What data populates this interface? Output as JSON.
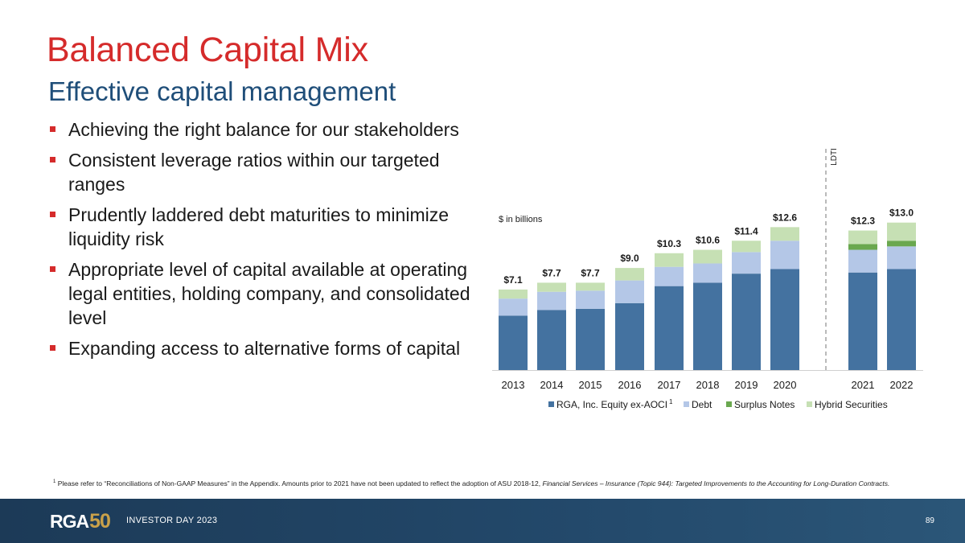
{
  "page": {
    "title": "Balanced Capital Mix",
    "subtitle": "Effective capital management",
    "bullets": [
      "Achieving the right balance for our stakeholders",
      "Consistent leverage ratios within our targeted ranges",
      "Prudently laddered debt maturities to minimize liquidity risk",
      "Appropriate level of capital available at operating legal entities, holding company, and consolidated level",
      "Expanding access to alternative forms of capital"
    ],
    "footnote_marker": "1",
    "footnote_text": "Please refer to “Reconciliations of Non-GAAP Measures” in the Appendix. Amounts prior to 2021 have not been updated to reflect the adoption of ASU 2018-12, ",
    "footnote_italic": "Financial Services – Insurance (Topic 944): Targeted Improvements to the Accounting for Long-Duration Contracts.",
    "footer_logo_rga": "RGA",
    "footer_logo_50": "50",
    "footer_event": "INVESTOR DAY 2023",
    "page_number": "89"
  },
  "chart_data": {
    "type": "bar",
    "stacked": true,
    "unit_label": "$ in billions",
    "divider_label": "LDTI",
    "categories": [
      "2013",
      "2014",
      "2015",
      "2016",
      "2017",
      "2018",
      "2019",
      "2020",
      "2021",
      "2022"
    ],
    "totals": [
      7.1,
      7.7,
      7.7,
      9.0,
      10.3,
      10.6,
      11.4,
      12.6,
      12.3,
      13.0
    ],
    "total_labels": [
      "$7.1",
      "$7.7",
      "$7.7",
      "$9.0",
      "$10.3",
      "$10.6",
      "$11.4",
      "$12.6",
      "$12.3",
      "$13.0"
    ],
    "ylim": [
      0,
      14
    ],
    "series": [
      {
        "name": "RGA, Inc. Equity ex-AOCI",
        "name_sup": "1",
        "color": "#4472a0",
        "values": [
          4.8,
          5.3,
          5.4,
          5.9,
          7.4,
          7.7,
          8.5,
          8.9,
          8.6,
          8.9
        ]
      },
      {
        "name": "Debt",
        "color": "#b4c7e7",
        "values": [
          1.5,
          1.6,
          1.6,
          2.0,
          1.7,
          1.7,
          1.9,
          2.5,
          2.0,
          2.0
        ]
      },
      {
        "name": "Surplus Notes",
        "color": "#6aa84f",
        "values": [
          0,
          0,
          0,
          0,
          0,
          0,
          0,
          0,
          0.5,
          0.5
        ]
      },
      {
        "name": "Hybrid Securities",
        "color": "#c6e0b4",
        "values": [
          0.8,
          0.8,
          0.7,
          1.1,
          1.2,
          1.2,
          1.0,
          1.2,
          1.2,
          1.6
        ]
      }
    ]
  }
}
